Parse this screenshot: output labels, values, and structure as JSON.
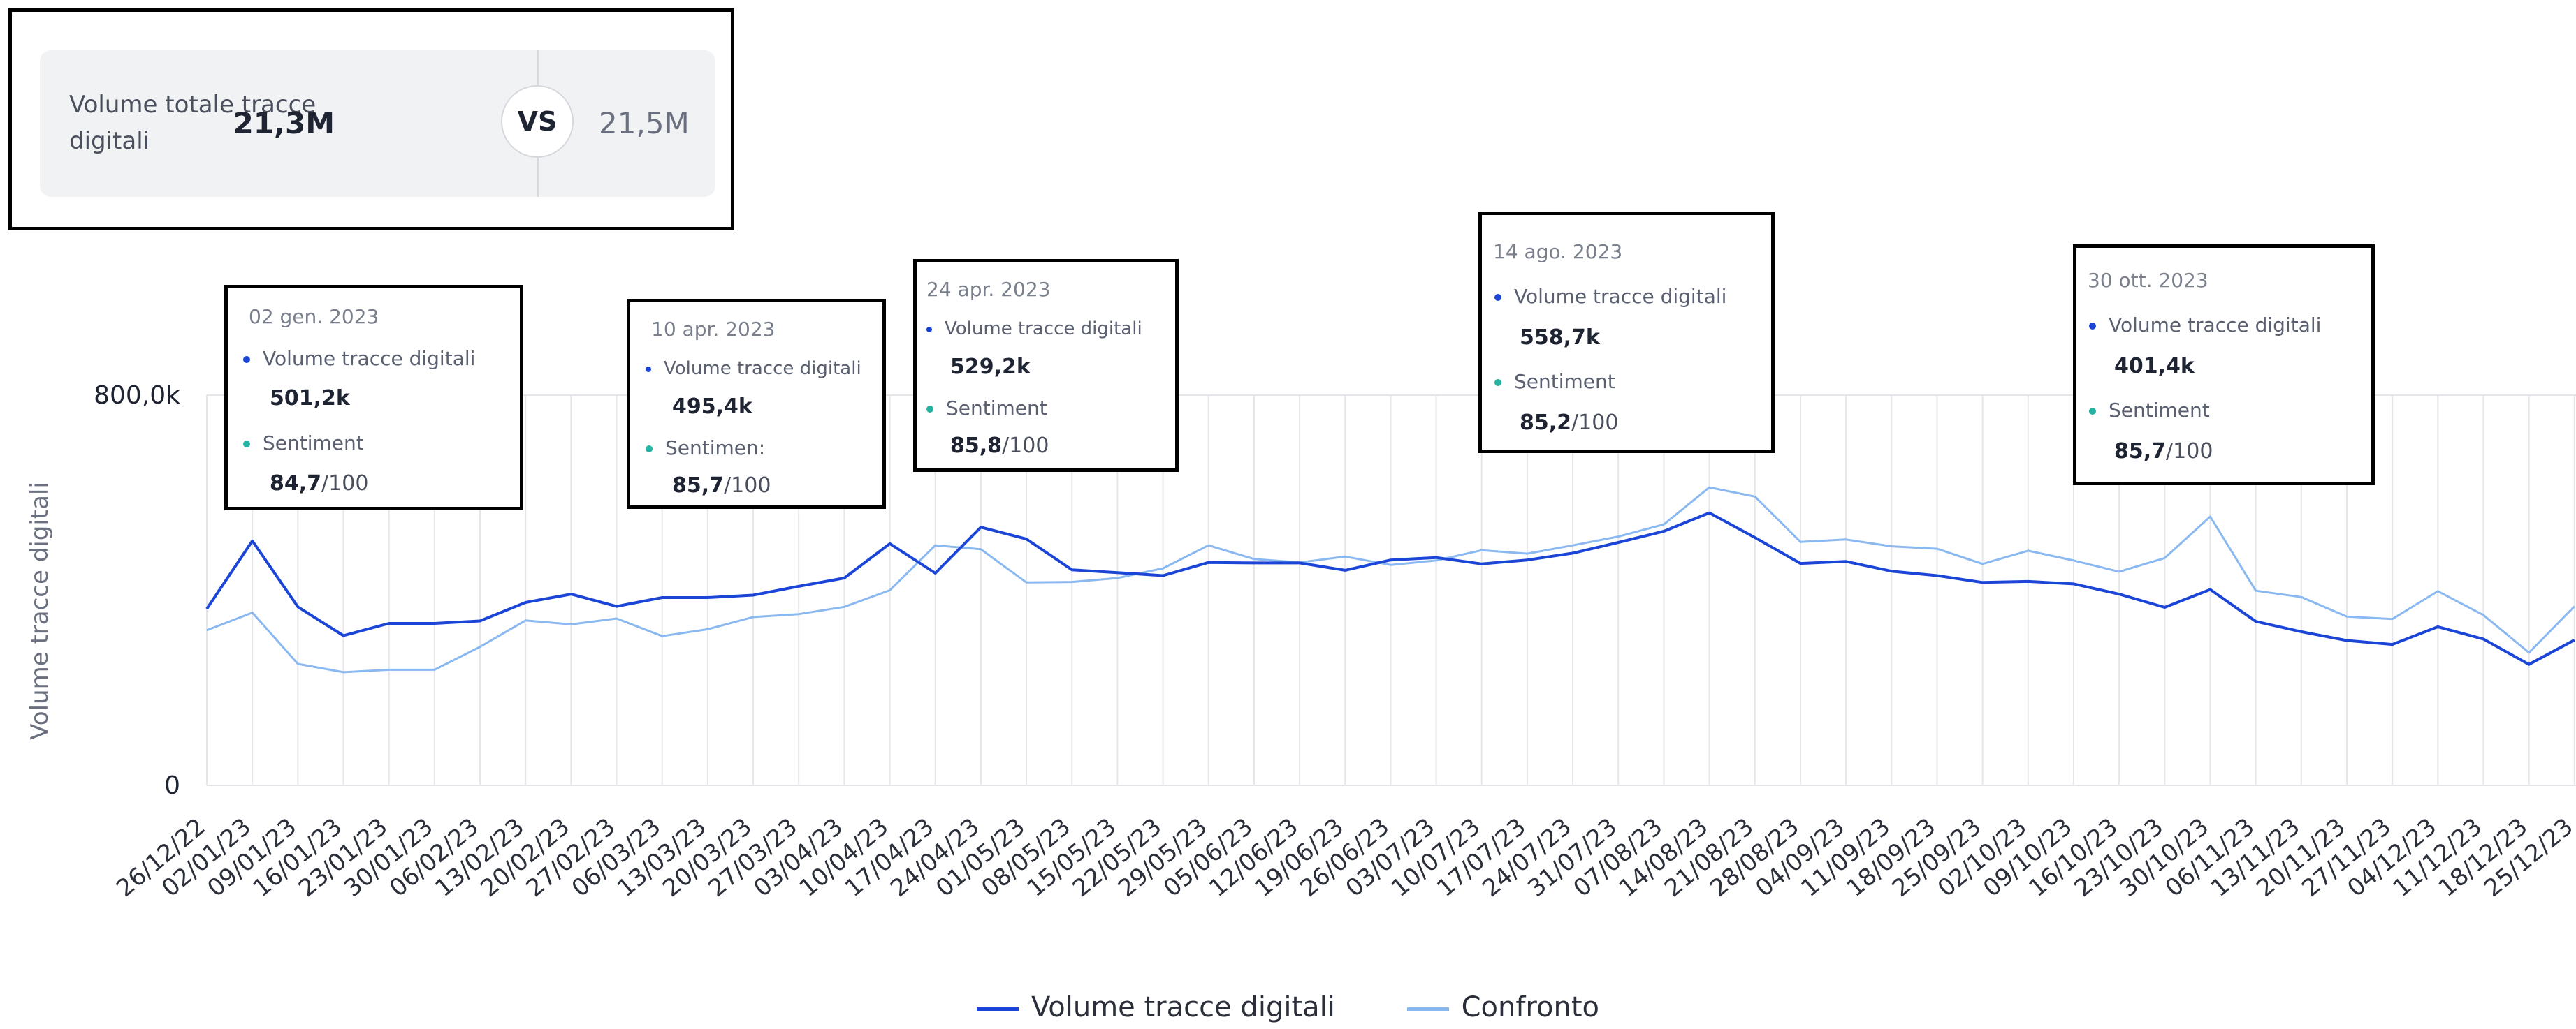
{
  "kpi": {
    "label": "Volume totale tracce digitali",
    "value": "21,3M",
    "vs": "VS",
    "compare_value": "21,5M"
  },
  "colors": {
    "primary": "#1a45d6",
    "comparison": "#8ab8f0",
    "sentiment": "#22b3a3",
    "grid": "#e4e6ea"
  },
  "chart_data": {
    "type": "line",
    "ylabel": "Volume tracce digitali",
    "xlabel": "",
    "ylim": [
      0,
      800000
    ],
    "yticks": [
      {
        "value": 0,
        "label": "0"
      },
      {
        "value": 800000,
        "label": "800,0k"
      }
    ],
    "grid": "vertical lines at each week + horizontal at 0 and 800,0k",
    "legend_position": "bottom-center",
    "categories": [
      "26/12/22",
      "02/01/23",
      "09/01/23",
      "16/01/23",
      "23/01/23",
      "30/01/23",
      "06/02/23",
      "13/02/23",
      "20/02/23",
      "27/02/23",
      "06/03/23",
      "13/03/23",
      "20/03/23",
      "27/03/23",
      "03/04/23",
      "10/04/23",
      "17/04/23",
      "24/04/23",
      "01/05/23",
      "08/05/23",
      "15/05/23",
      "22/05/23",
      "29/05/23",
      "05/06/23",
      "12/06/23",
      "19/06/23",
      "26/06/23",
      "03/07/23",
      "10/07/23",
      "17/07/23",
      "24/07/23",
      "31/07/23",
      "07/08/23",
      "14/08/23",
      "21/08/23",
      "28/08/23",
      "04/09/23",
      "11/09/23",
      "18/09/23",
      "25/09/23",
      "02/10/23",
      "09/10/23",
      "16/10/23",
      "23/10/23",
      "30/10/23",
      "06/11/23",
      "13/11/23",
      "20/11/23",
      "27/11/23",
      "04/12/23",
      "11/12/23",
      "18/12/23",
      "25/12/23"
    ],
    "series": [
      {
        "name": "Volume tracce digitali",
        "values": [
          362000,
          501200,
          366000,
          307000,
          332000,
          332000,
          337000,
          375000,
          392000,
          367000,
          385000,
          385000,
          390000,
          408000,
          425000,
          495400,
          435000,
          529200,
          505000,
          442000,
          436000,
          430000,
          457000,
          456000,
          456000,
          441000,
          462000,
          467000,
          454000,
          462000,
          476000,
          498000,
          521000,
          558700,
          508000,
          455000,
          459000,
          439000,
          430000,
          416000,
          418000,
          413000,
          392000,
          365000,
          401400,
          336000,
          315000,
          297000,
          289000,
          325000,
          300000,
          248000,
          298000
        ]
      },
      {
        "name": "Confronto",
        "values": [
          318000,
          354000,
          249000,
          232000,
          237000,
          237000,
          284000,
          338000,
          330000,
          342000,
          306000,
          320000,
          345000,
          351000,
          366000,
          400000,
          492000,
          484000,
          416000,
          417000,
          425000,
          445000,
          492000,
          464000,
          457000,
          469000,
          452000,
          461000,
          482000,
          475000,
          492000,
          510000,
          535000,
          611000,
          592000,
          499000,
          504000,
          490000,
          485000,
          454000,
          481000,
          461000,
          438000,
          466000,
          551000,
          399000,
          386000,
          346000,
          341000,
          398000,
          349000,
          272000,
          367000
        ]
      }
    ],
    "tooltips": [
      {
        "date": "02 gen. 2023",
        "volume_label": "Volume tracce digitali",
        "volume": "501,2k",
        "sentiment_label": "Sentiment",
        "sentiment": "84,7",
        "sentiment_suffix": "/100"
      },
      {
        "date": "10 apr. 2023",
        "volume_label": "Volume tracce digitali",
        "volume": "495,4k",
        "sentiment_label": "Sentimen:",
        "sentiment": "85,7",
        "sentiment_suffix": "/100"
      },
      {
        "date": "24 apr. 2023",
        "volume_label": "Volume tracce digitali",
        "volume": "529,2k",
        "sentiment_label": "Sentiment",
        "sentiment": "85,8",
        "sentiment_suffix": "/100"
      },
      {
        "date": "14 ago. 2023",
        "volume_label": "Volume tracce digitali",
        "volume": "558,7k",
        "sentiment_label": "Sentiment",
        "sentiment": "85,2",
        "sentiment_suffix": "/100"
      },
      {
        "date": "30 ott. 2023",
        "volume_label": "Volume tracce digitali",
        "volume": "401,4k",
        "sentiment_label": "Sentiment",
        "sentiment": "85,7",
        "sentiment_suffix": "/100"
      }
    ]
  }
}
